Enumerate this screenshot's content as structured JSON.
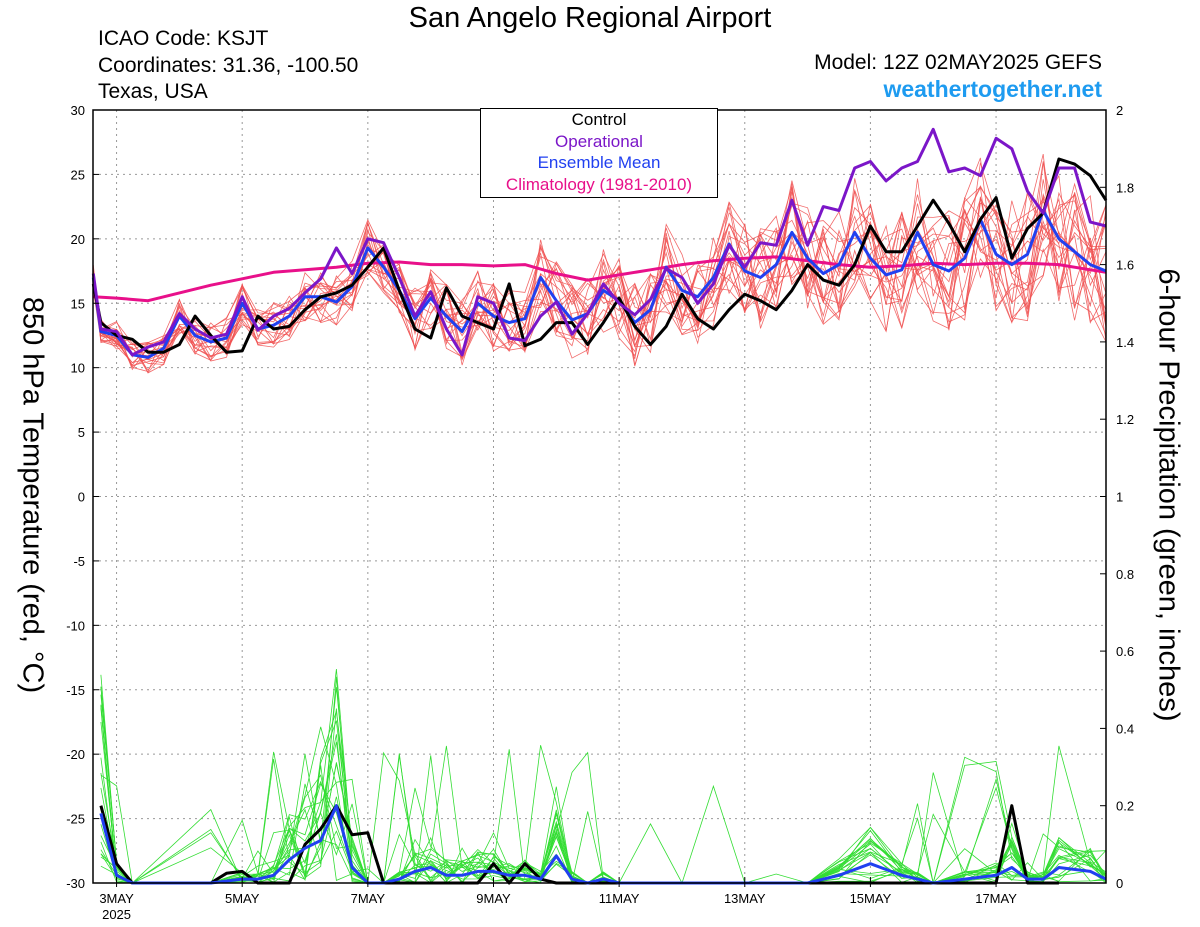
{
  "header": {
    "title": "San Angelo Regional Airport",
    "icao": "ICAO Code: KSJT",
    "coordinates": "Coordinates: 31.36, -100.50",
    "location": "Texas, USA",
    "model": "Model: 12Z 02MAY2025 GEFS",
    "site": "weathertogether.net"
  },
  "colors": {
    "control": "#000000",
    "operational": "#7b16c8",
    "ensemble_mean": "#2040f0",
    "climatology": "#e8108a",
    "members_temp": "#f05050",
    "members_precip": "#33dd33",
    "site": "#1e9bf0"
  },
  "chart_data": {
    "type": "line",
    "ylabel_left": "850 hPa Temperature (red, °C)",
    "ylabel_right": "6-hour Precipitation (green, inches)",
    "y_left_range": [
      -30,
      30
    ],
    "y_left_ticks": [
      "30",
      "25",
      "20",
      "15",
      "10",
      "5",
      "0",
      "-5",
      "-10",
      "-15",
      "-20",
      "-25",
      "-30"
    ],
    "y_right_range": [
      0,
      2
    ],
    "y_right_ticks": [
      "2",
      "1.8",
      "1.6",
      "1.4",
      "1.2",
      "1",
      "0.8",
      "0.6",
      "0.4",
      "0.2",
      "0"
    ],
    "x_tick_labels": [
      "3MAY",
      "5MAY",
      "7MAY",
      "9MAY",
      "11MAY",
      "13MAY",
      "15MAY",
      "17MAY"
    ],
    "x_tick_days": [
      3,
      5,
      7,
      9,
      11,
      13,
      15,
      17
    ],
    "x_year_label": "2025",
    "x_range_days": [
      2.625,
      18.75
    ],
    "grid": true,
    "legend": {
      "position": "top-center",
      "entries": [
        "Control",
        "Operational",
        "Ensemble Mean",
        "Climatology (1981-2010)"
      ]
    },
    "series_temperature": [
      {
        "name": "Control",
        "x": [
          2.63,
          2.75,
          3.0,
          3.25,
          3.5,
          3.75,
          4.0,
          4.25,
          4.5,
          4.75,
          5.0,
          5.25,
          5.5,
          5.75,
          6.0,
          6.25,
          6.5,
          6.75,
          7.0,
          7.25,
          7.5,
          7.75,
          8.0,
          8.25,
          8.5,
          8.75,
          9.0,
          9.25,
          9.5,
          9.75,
          10.0,
          10.25,
          10.5,
          10.75,
          11.0,
          11.25,
          11.5,
          11.75,
          12.0,
          12.25,
          12.5,
          12.75,
          13.0,
          13.25,
          13.5,
          13.75,
          14.0,
          14.25,
          14.5,
          14.75,
          15.0,
          15.25,
          15.5,
          15.75,
          16.0,
          16.25,
          16.5,
          16.75,
          17.0,
          17.25,
          17.5,
          17.75,
          18.0,
          18.25,
          18.5,
          18.75
        ],
        "y": [
          16.5,
          13.5,
          12.5,
          12.2,
          11.2,
          11.2,
          11.8,
          14.0,
          12.5,
          11.2,
          11.3,
          14.0,
          13.0,
          13.2,
          14.5,
          15.5,
          15.8,
          16.4,
          17.8,
          19.3,
          16.0,
          13.0,
          12.3,
          16.2,
          14.0,
          13.5,
          13.0,
          16.5,
          11.7,
          12.2,
          13.5,
          13.5,
          11.8,
          13.5,
          15.4,
          13.2,
          11.8,
          13.2,
          15.7,
          13.8,
          13.0,
          14.5,
          15.7,
          15.2,
          14.5,
          16.0,
          18.0,
          16.8,
          16.4,
          18.0,
          21.0,
          19.0,
          19.0,
          21.0,
          23.0,
          21.2,
          19.0,
          21.5,
          23.2,
          18.5,
          20.8,
          22.0,
          26.2,
          25.8,
          24.9,
          23.0
        ]
      },
      {
        "name": "Operational",
        "x": [
          2.63,
          2.75,
          3.0,
          3.25,
          3.5,
          3.75,
          4.0,
          4.25,
          4.5,
          4.75,
          5.0,
          5.25,
          5.5,
          5.75,
          6.0,
          6.25,
          6.5,
          6.75,
          7.0,
          7.25,
          7.5,
          7.75,
          8.0,
          8.25,
          8.5,
          8.75,
          9.0,
          9.25,
          9.5,
          9.75,
          10.0,
          10.25,
          10.5,
          10.75,
          11.0,
          11.25,
          11.5,
          11.75,
          12.0,
          12.25,
          12.5,
          12.75,
          13.0,
          13.25,
          13.5,
          13.75,
          14.0,
          14.25,
          14.5,
          14.75,
          15.0,
          15.25,
          15.5,
          15.75,
          16.0,
          16.25,
          16.5,
          16.75,
          17.0,
          17.25,
          17.5,
          17.75,
          18.0,
          18.25,
          18.5,
          18.75
        ],
        "y": [
          17.3,
          13.0,
          12.8,
          11.0,
          11.6,
          12.0,
          14.2,
          13.0,
          12.3,
          12.6,
          15.5,
          12.9,
          14.0,
          14.6,
          15.8,
          16.9,
          19.3,
          17.3,
          20.0,
          19.7,
          17.0,
          14.0,
          15.9,
          13.0,
          11.0,
          15.5,
          15.0,
          12.3,
          12.1,
          14.0,
          15.1,
          12.6,
          14.2,
          16.5,
          15.0,
          14.1,
          15.3,
          17.7,
          17.0,
          15.0,
          16.5,
          19.5,
          17.8,
          19.7,
          19.5,
          23.0,
          19.5,
          22.5,
          22.2,
          25.5,
          26.0,
          24.5,
          25.5,
          26.0,
          28.5,
          25.2,
          25.5,
          24.9,
          27.8,
          27.0,
          23.7,
          22.0,
          25.5,
          25.5,
          21.3,
          21.0
        ]
      },
      {
        "name": "Ensemble Mean",
        "x": [
          2.63,
          2.75,
          3.0,
          3.25,
          3.5,
          3.75,
          4.0,
          4.25,
          4.5,
          4.75,
          5.0,
          5.25,
          5.5,
          5.75,
          6.0,
          6.25,
          6.5,
          6.75,
          7.0,
          7.25,
          7.5,
          7.75,
          8.0,
          8.25,
          8.5,
          8.75,
          9.0,
          9.25,
          9.5,
          9.75,
          10.0,
          10.25,
          10.5,
          10.75,
          11.0,
          11.25,
          11.5,
          11.75,
          12.0,
          12.25,
          12.5,
          12.75,
          13.0,
          13.25,
          13.5,
          13.75,
          14.0,
          14.25,
          14.5,
          14.75,
          15.0,
          15.25,
          15.5,
          15.75,
          16.0,
          16.25,
          16.5,
          16.75,
          17.0,
          17.25,
          17.5,
          17.75,
          18.0,
          18.25,
          18.5,
          18.75
        ],
        "y": [
          17.0,
          12.8,
          12.5,
          11.0,
          10.8,
          11.5,
          14.0,
          12.5,
          12.0,
          12.3,
          15.0,
          13.0,
          13.3,
          14.0,
          15.5,
          15.5,
          15.1,
          16.3,
          19.3,
          17.8,
          16.0,
          13.8,
          15.4,
          14.0,
          12.8,
          15.0,
          14.0,
          13.5,
          13.8,
          17.0,
          15.2,
          13.7,
          14.2,
          16.0,
          15.2,
          13.5,
          14.5,
          17.8,
          16.0,
          15.5,
          17.0,
          19.6,
          17.5,
          17.0,
          18.0,
          20.5,
          18.5,
          17.3,
          18.0,
          20.5,
          18.5,
          17.2,
          17.6,
          20.5,
          18.0,
          17.5,
          18.5,
          21.5,
          18.8,
          18.0,
          18.8,
          22.2,
          20.0,
          19.0,
          18.0,
          17.5
        ]
      },
      {
        "name": "Climatology (1981-2010)",
        "x": [
          2.63,
          3.0,
          3.5,
          4.0,
          4.5,
          5.0,
          5.5,
          6.0,
          6.5,
          7.0,
          7.5,
          8.0,
          8.5,
          9.0,
          9.5,
          10.0,
          10.5,
          11.0,
          11.5,
          12.0,
          12.5,
          13.0,
          13.5,
          14.0,
          14.5,
          15.0,
          15.5,
          16.0,
          16.5,
          17.0,
          17.5,
          18.0,
          18.5,
          18.75
        ],
        "y": [
          15.5,
          15.4,
          15.2,
          15.8,
          16.4,
          16.9,
          17.4,
          17.6,
          17.8,
          18.1,
          18.2,
          18.0,
          18.0,
          17.9,
          18.0,
          17.3,
          16.8,
          17.2,
          17.6,
          18.0,
          18.3,
          18.5,
          18.6,
          18.3,
          18.0,
          17.8,
          17.9,
          18.1,
          18.0,
          18.1,
          18.1,
          18.0,
          17.6,
          17.4
        ]
      }
    ],
    "series_precip": [
      {
        "name": "Control",
        "x": [
          2.75,
          3.0,
          3.25,
          4.5,
          4.75,
          5.0,
          5.25,
          5.5,
          5.75,
          6.0,
          6.25,
          6.5,
          6.75,
          7.0,
          7.25,
          8.5,
          8.75,
          9.0,
          9.25,
          9.5,
          9.75,
          10.0,
          16.5,
          17.0,
          17.25,
          17.5,
          18.0
        ],
        "y": [
          0.2,
          0.05,
          0.0,
          0.0,
          0.025,
          0.03,
          0.0,
          0.0,
          0.0,
          0.1,
          0.14,
          0.2,
          0.125,
          0.13,
          0.0,
          0.0,
          0.0,
          0.05,
          0.0,
          0.05,
          0.01,
          0.0,
          0.0,
          0.0,
          0.2,
          0.0,
          0.0
        ]
      },
      {
        "name": "Ensemble Mean",
        "x": [
          2.75,
          3.0,
          3.25,
          4.5,
          5.0,
          5.25,
          5.5,
          5.75,
          6.0,
          6.25,
          6.5,
          6.75,
          7.0,
          7.25,
          7.5,
          7.75,
          8.0,
          8.25,
          8.5,
          8.75,
          9.0,
          9.25,
          9.5,
          9.75,
          10.0,
          10.25,
          10.5,
          10.75,
          11.0,
          11.5,
          12.0,
          12.5,
          13.0,
          13.5,
          14.0,
          14.5,
          15.0,
          15.5,
          15.75,
          16.0,
          16.5,
          17.0,
          17.25,
          17.5,
          17.75,
          18.0,
          18.5,
          18.75
        ],
        "y": [
          0.18,
          0.02,
          0.0,
          0.0,
          0.01,
          0.01,
          0.02,
          0.06,
          0.09,
          0.11,
          0.2,
          0.04,
          0.0,
          0.0,
          0.01,
          0.03,
          0.04,
          0.02,
          0.02,
          0.03,
          0.03,
          0.02,
          0.02,
          0.01,
          0.07,
          0.01,
          0.0,
          0.01,
          0.0,
          0.0,
          0.0,
          0.0,
          0.0,
          0.0,
          0.0,
          0.02,
          0.05,
          0.02,
          0.01,
          0.0,
          0.01,
          0.02,
          0.04,
          0.01,
          0.01,
          0.04,
          0.03,
          0.01
        ]
      }
    ]
  }
}
